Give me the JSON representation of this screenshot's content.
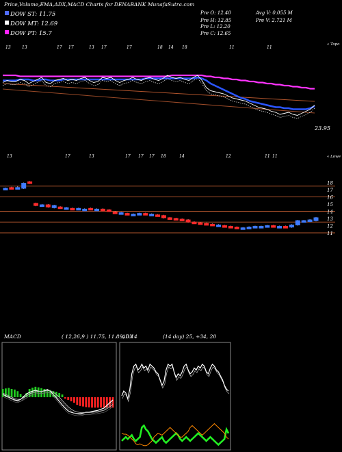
{
  "header": {
    "title": "Price,Volume,EMA,ADX,MACD Charts for DENABANK MunafaSutra.com",
    "legend": [
      {
        "label": "DOW ST: 11.75",
        "color": "#4f6bff"
      },
      {
        "label": "DOW MT: 12.69",
        "color": "#ffffff"
      },
      {
        "label": "DOW PT: 15.7",
        "color": "#ff22ff"
      }
    ],
    "stats_col1": [
      "Pre   O: 12.40",
      "Pre   H: 12.85",
      "Pre   L: 12.20",
      "Pre   C: 12.65"
    ],
    "stats_col2": [
      "Avg V: 0.055 M",
      "Pre   V: 2.721 M"
    ]
  },
  "colors": {
    "fast_ema": "#2b56ff",
    "slow_ema": "#ff33ff",
    "support_line": "#b0542c",
    "candle_up": "#3f7bff",
    "candle_down": "#ff2a2a",
    "macd_up": "#22cc22",
    "macd_down": "#ff2222",
    "adx_plus": "#22ee22",
    "adx_minus": "#ff8800"
  },
  "chart_data": [
    {
      "type": "line",
      "name": "EMA chart",
      "top_date_labels": [
        "13",
        "13",
        "17",
        "17",
        "13",
        "17",
        "17",
        "18",
        "14",
        "18",
        "11",
        "11"
      ],
      "bottom_date_labels": [
        "13",
        "17",
        "13",
        "17",
        "17",
        "17",
        "18",
        "14",
        "12",
        "11",
        "11"
      ],
      "top_right_label": "« Topo",
      "bottom_right_label": "« Lowe",
      "last_value_label": "23.95",
      "series": [
        {
          "name": "Price",
          "values": [
            53,
            55,
            54,
            54,
            56,
            55,
            52,
            54,
            56,
            58,
            53,
            52,
            55,
            56,
            57,
            55,
            56,
            55,
            57,
            58,
            55,
            53,
            54,
            58,
            57,
            58,
            55,
            53,
            55,
            56,
            58,
            56,
            55,
            57,
            58,
            56,
            55,
            57,
            60,
            58,
            57,
            58,
            56,
            55,
            58,
            60,
            55,
            48,
            45,
            44,
            43,
            42,
            40,
            38,
            37,
            36,
            35,
            33,
            31,
            29,
            28,
            27,
            25,
            24,
            22,
            23,
            24,
            22,
            21,
            23,
            25,
            27,
            31
          ]
        },
        {
          "name": "Fast EMA",
          "values": [
            55,
            55,
            55,
            55,
            56,
            56,
            56,
            55,
            55,
            56,
            56,
            55,
            55,
            55,
            56,
            56,
            56,
            56,
            56,
            56,
            56,
            56,
            56,
            56,
            56,
            56,
            56,
            56,
            56,
            56,
            56,
            56,
            56,
            57,
            57,
            57,
            57,
            57,
            57,
            57,
            57,
            57,
            57,
            57,
            57,
            58,
            57,
            55,
            52,
            50,
            48,
            46,
            44,
            42,
            40,
            38,
            37,
            35,
            34,
            33,
            32,
            31,
            30,
            29,
            29,
            28,
            28,
            27,
            27,
            27,
            27,
            28,
            30
          ]
        },
        {
          "name": "Slow EMA",
          "values": [
            60,
            60,
            60,
            60,
            59,
            59,
            59,
            59,
            59,
            59,
            59,
            59,
            59,
            59,
            59,
            59,
            59,
            59,
            59,
            59,
            59,
            59,
            59,
            59,
            59,
            59,
            59,
            59,
            59,
            59,
            59,
            59,
            59,
            59,
            59,
            59,
            59,
            59,
            59,
            60,
            60,
            60,
            60,
            60,
            60,
            60,
            60,
            59,
            59,
            58,
            58,
            57,
            57,
            56,
            56,
            55,
            55,
            54,
            54,
            53,
            53,
            52,
            52,
            51,
            51,
            50,
            50,
            49,
            49,
            48,
            48,
            47,
            47
          ]
        }
      ]
    },
    {
      "type": "bar",
      "name": "Price candles",
      "y_ticks": [
        18,
        17,
        16,
        15,
        14,
        13,
        12,
        11
      ],
      "price_lines": [
        17.5,
        16,
        14,
        12.5,
        11
      ],
      "candles": [
        {
          "o": 17.2,
          "c": 17.2,
          "h": 17.3,
          "l": 17.1
        },
        {
          "o": 17.3,
          "c": 17.2,
          "h": 17.4,
          "l": 17.1
        },
        {
          "o": 17.3,
          "c": 17.3,
          "h": 17.5,
          "l": 17.2
        },
        {
          "o": 17.2,
          "c": 17.9,
          "h": 18.0,
          "l": 17.1
        },
        {
          "o": 18.1,
          "c": 17.9,
          "h": 18.2,
          "l": 17.8
        },
        {
          "o": 15.1,
          "c": 14.8,
          "h": 15.2,
          "l": 14.7
        },
        {
          "o": 14.9,
          "c": 14.9,
          "h": 15.0,
          "l": 14.8
        },
        {
          "o": 14.9,
          "c": 14.6,
          "h": 15.0,
          "l": 14.5
        },
        {
          "o": 14.5,
          "c": 14.8,
          "h": 14.9,
          "l": 14.4
        },
        {
          "o": 14.6,
          "c": 14.5,
          "h": 14.7,
          "l": 14.4
        },
        {
          "o": 14.5,
          "c": 14.5,
          "h": 14.6,
          "l": 14.4
        },
        {
          "o": 14.4,
          "c": 14.3,
          "h": 14.5,
          "l": 14.2
        },
        {
          "o": 14.4,
          "c": 14.4,
          "h": 14.5,
          "l": 14.3
        },
        {
          "o": 14.3,
          "c": 14.3,
          "h": 14.4,
          "l": 14.2
        },
        {
          "o": 14.4,
          "c": 14.3,
          "h": 14.5,
          "l": 14.2
        },
        {
          "o": 14.3,
          "c": 14.3,
          "h": 14.4,
          "l": 14.2
        },
        {
          "o": 14.3,
          "c": 14.2,
          "h": 14.4,
          "l": 14.1
        },
        {
          "o": 14.2,
          "c": 14.0,
          "h": 14.3,
          "l": 13.9
        },
        {
          "o": 13.9,
          "c": 13.8,
          "h": 14.0,
          "l": 13.7
        },
        {
          "o": 13.8,
          "c": 13.8,
          "h": 13.9,
          "l": 13.7
        },
        {
          "o": 13.7,
          "c": 13.6,
          "h": 13.8,
          "l": 13.5
        },
        {
          "o": 13.6,
          "c": 13.6,
          "h": 13.7,
          "l": 13.5
        },
        {
          "o": 13.6,
          "c": 13.7,
          "h": 13.8,
          "l": 13.5
        },
        {
          "o": 13.7,
          "c": 13.6,
          "h": 13.8,
          "l": 13.5
        },
        {
          "o": 13.6,
          "c": 13.6,
          "h": 13.7,
          "l": 13.5
        },
        {
          "o": 13.5,
          "c": 13.4,
          "h": 13.6,
          "l": 13.3
        },
        {
          "o": 13.4,
          "c": 13.1,
          "h": 13.5,
          "l": 13.0
        },
        {
          "o": 13.1,
          "c": 13.0,
          "h": 13.2,
          "l": 12.9
        },
        {
          "o": 13.0,
          "c": 12.9,
          "h": 13.1,
          "l": 12.8
        },
        {
          "o": 12.9,
          "c": 12.8,
          "h": 13.0,
          "l": 12.7
        },
        {
          "o": 12.8,
          "c": 12.5,
          "h": 12.9,
          "l": 12.4
        },
        {
          "o": 12.5,
          "c": 12.4,
          "h": 12.6,
          "l": 12.3
        },
        {
          "o": 12.4,
          "c": 12.3,
          "h": 12.5,
          "l": 12.2
        },
        {
          "o": 12.3,
          "c": 12.2,
          "h": 12.4,
          "l": 12.1
        },
        {
          "o": 12.2,
          "c": 12.1,
          "h": 12.3,
          "l": 12.0
        },
        {
          "o": 12.1,
          "c": 12.1,
          "h": 12.2,
          "l": 12.0
        },
        {
          "o": 12.0,
          "c": 11.9,
          "h": 12.1,
          "l": 11.8
        },
        {
          "o": 11.9,
          "c": 11.8,
          "h": 12.0,
          "l": 11.7
        },
        {
          "o": 11.8,
          "c": 11.7,
          "h": 11.9,
          "l": 11.6
        },
        {
          "o": 11.7,
          "c": 11.7,
          "h": 11.8,
          "l": 11.6
        },
        {
          "o": 11.7,
          "c": 11.8,
          "h": 11.9,
          "l": 11.6
        },
        {
          "o": 11.8,
          "c": 11.9,
          "h": 12.0,
          "l": 11.7
        },
        {
          "o": 11.9,
          "c": 11.9,
          "h": 12.0,
          "l": 11.8
        },
        {
          "o": 12.0,
          "c": 12.0,
          "h": 12.1,
          "l": 11.9
        },
        {
          "o": 12.0,
          "c": 11.9,
          "h": 12.1,
          "l": 11.8
        },
        {
          "o": 11.9,
          "c": 11.9,
          "h": 12.0,
          "l": 11.8
        },
        {
          "o": 11.9,
          "c": 11.8,
          "h": 12.0,
          "l": 11.7
        },
        {
          "o": 11.8,
          "c": 12.1,
          "h": 12.2,
          "l": 11.7
        },
        {
          "o": 12.1,
          "c": 12.7,
          "h": 12.8,
          "l": 12.0
        },
        {
          "o": 12.7,
          "c": 12.7,
          "h": 12.8,
          "l": 12.6
        },
        {
          "o": 12.6,
          "c": 12.8,
          "h": 12.9,
          "l": 12.5
        },
        {
          "o": 12.7,
          "c": 13.1,
          "h": 13.2,
          "l": 12.6
        }
      ]
    },
    {
      "type": "bar",
      "name": "MACD",
      "label": "MACD",
      "params": "( 12,26,9 ) 11.75,  11.89,  0.14",
      "histogram": [
        0.3,
        0.32,
        0.34,
        0.3,
        0.28,
        0.22,
        0.12,
        0.05,
        0.15,
        0.3,
        0.35,
        0.38,
        0.36,
        0.33,
        0.3,
        0.28,
        0.26,
        0.22,
        0.2,
        0.15,
        0.1,
        -0.05,
        -0.1,
        -0.15,
        -0.2,
        -0.28,
        -0.32,
        -0.34,
        -0.36,
        -0.37,
        -0.38,
        -0.38,
        -0.38,
        -0.38,
        -0.38,
        -0.38,
        -0.38,
        -0.38
      ],
      "series": [
        {
          "name": "MACD",
          "values": [
            0.1,
            0.05,
            0.0,
            -0.05,
            -0.1,
            -0.12,
            -0.08,
            0.02,
            0.12,
            0.18,
            0.22,
            0.25,
            0.22,
            0.2,
            0.24,
            0.28,
            0.22,
            0.1,
            -0.02,
            -0.15,
            -0.28,
            -0.4,
            -0.5,
            -0.55,
            -0.58,
            -0.6,
            -0.6,
            -0.58,
            -0.55,
            -0.55,
            -0.52,
            -0.5,
            -0.48,
            -0.44,
            -0.4,
            -0.3,
            -0.2,
            -0.1
          ]
        },
        {
          "name": "Signal",
          "values": [
            0.15,
            0.1,
            0.05,
            0.0,
            -0.05,
            -0.08,
            -0.07,
            -0.02,
            0.05,
            0.12,
            0.17,
            0.2,
            0.21,
            0.21,
            0.22,
            0.24,
            0.23,
            0.18,
            0.1,
            0.0,
            -0.12,
            -0.24,
            -0.35,
            -0.44,
            -0.5,
            -0.54,
            -0.56,
            -0.56,
            -0.56,
            -0.56,
            -0.55,
            -0.54,
            -0.52,
            -0.5,
            -0.48,
            -0.42,
            -0.35,
            -0.26
          ]
        }
      ]
    },
    {
      "type": "line",
      "name": "ADX",
      "label": "ADX",
      "params": "(14 day) 25,  +34,  20",
      "series": [
        {
          "name": "ADX",
          "values": [
            55,
            60,
            58,
            52,
            62,
            78,
            86,
            88,
            82,
            84,
            88,
            84,
            86,
            82,
            88,
            86,
            84,
            80,
            78,
            72,
            66,
            70,
            82,
            88,
            86,
            88,
            80,
            74,
            78,
            76,
            80,
            86,
            88,
            82,
            78,
            80,
            84,
            82,
            86,
            84,
            88,
            86,
            80,
            78,
            84,
            88,
            86,
            82,
            80,
            76,
            72,
            66,
            62,
            60
          ]
        },
        {
          "name": "+DI",
          "values": [
            8,
            10,
            12,
            10,
            12,
            14,
            10,
            8,
            10,
            12,
            22,
            24,
            20,
            18,
            14,
            10,
            8,
            6,
            8,
            10,
            12,
            8,
            6,
            8,
            10,
            12,
            14,
            16,
            14,
            10,
            8,
            10,
            12,
            10,
            8,
            10,
            12,
            14,
            16,
            14,
            12,
            10,
            8,
            10,
            12,
            10,
            8,
            6,
            4,
            6,
            8,
            10,
            20,
            16
          ]
        },
        {
          "name": "-DI",
          "values": [
            16,
            15,
            15,
            14,
            12,
            10,
            8,
            5,
            4,
            5,
            4,
            3,
            3,
            4,
            6,
            8,
            12,
            14,
            16,
            15,
            14,
            16,
            18,
            20,
            22,
            20,
            18,
            16,
            14,
            12,
            12,
            14,
            16,
            18,
            22,
            24,
            22,
            20,
            18,
            16,
            14,
            16,
            18,
            20,
            22,
            24,
            26,
            24,
            22,
            20,
            18,
            16,
            12,
            10
          ]
        }
      ]
    }
  ]
}
